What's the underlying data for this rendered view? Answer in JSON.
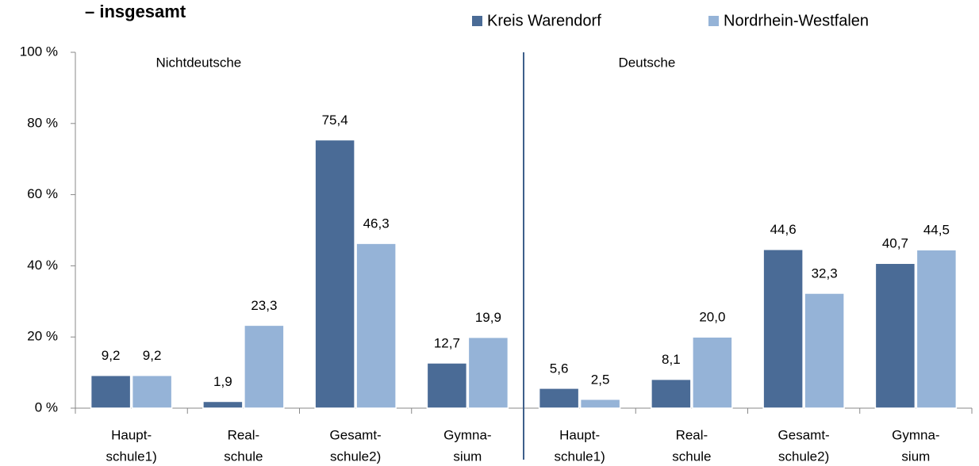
{
  "chart_data": {
    "type": "bar",
    "title": "– insgesamt",
    "groups": [
      "Nichtdeutsche",
      "Deutsche"
    ],
    "categories": [
      [
        "Haupt-",
        "schule1)"
      ],
      [
        "Real-",
        "schule"
      ],
      [
        "Gesamt-",
        "schule2)"
      ],
      [
        "Gymna-",
        "sium"
      ],
      [
        "Haupt-",
        "schule1)"
      ],
      [
        "Real-",
        "schule"
      ],
      [
        "Gesamt-",
        "schule2)"
      ],
      [
        "Gymna-",
        "sium"
      ]
    ],
    "series": [
      {
        "name": "Kreis Warendorf",
        "color": "#4a6b96",
        "values": [
          9.2,
          1.9,
          75.4,
          12.7,
          5.6,
          8.1,
          44.6,
          40.7
        ],
        "value_labels": [
          "9,2",
          "1,9",
          "75,4",
          "12,7",
          "5,6",
          "8,1",
          "44,6",
          "40,7"
        ]
      },
      {
        "name": "Nordrhein-Westfalen",
        "color": "#95b3d7",
        "values": [
          9.2,
          23.3,
          46.3,
          19.9,
          2.5,
          20.0,
          32.3,
          44.5
        ],
        "value_labels": [
          "9,2",
          "23,3",
          "46,3",
          "19,9",
          "2,5",
          "20,0",
          "32,3",
          "44,5"
        ]
      }
    ],
    "ylim": [
      0,
      100
    ],
    "yticks": [
      {
        "value": 0,
        "label": "0 %"
      },
      {
        "value": 20,
        "label": "20 %"
      },
      {
        "value": 40,
        "label": "40 %"
      },
      {
        "value": 60,
        "label": "60 %"
      },
      {
        "value": 80,
        "label": "80 %"
      },
      {
        "value": 100,
        "label": "100 %"
      }
    ],
    "grid": false
  }
}
